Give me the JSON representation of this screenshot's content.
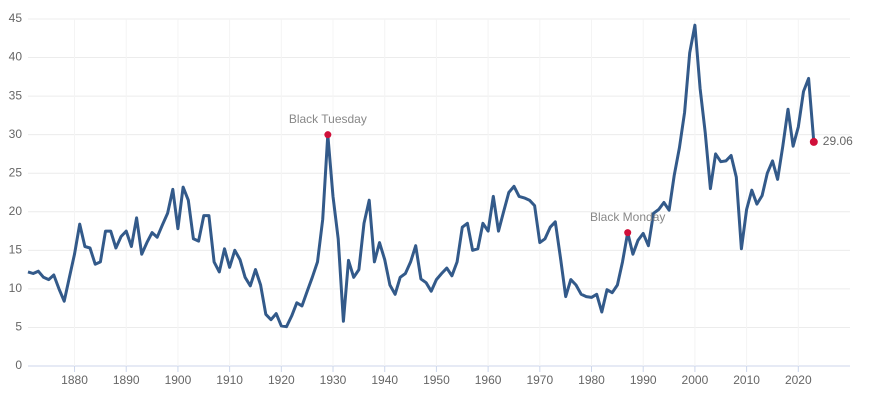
{
  "chart_data": {
    "type": "line",
    "x": [
      1871,
      1872,
      1873,
      1874,
      1875,
      1876,
      1877,
      1878,
      1879,
      1880,
      1881,
      1882,
      1883,
      1884,
      1885,
      1886,
      1887,
      1888,
      1889,
      1890,
      1891,
      1892,
      1893,
      1894,
      1895,
      1896,
      1897,
      1898,
      1899,
      1900,
      1901,
      1902,
      1903,
      1904,
      1905,
      1906,
      1907,
      1908,
      1909,
      1910,
      1911,
      1912,
      1913,
      1914,
      1915,
      1916,
      1917,
      1918,
      1919,
      1920,
      1921,
      1922,
      1923,
      1924,
      1925,
      1926,
      1927,
      1928,
      1929,
      1930,
      1931,
      1932,
      1933,
      1934,
      1935,
      1936,
      1937,
      1938,
      1939,
      1940,
      1941,
      1942,
      1943,
      1944,
      1945,
      1946,
      1947,
      1948,
      1949,
      1950,
      1951,
      1952,
      1953,
      1954,
      1955,
      1956,
      1957,
      1958,
      1959,
      1960,
      1961,
      1962,
      1963,
      1964,
      1965,
      1966,
      1967,
      1968,
      1969,
      1970,
      1971,
      1972,
      1973,
      1974,
      1975,
      1976,
      1977,
      1978,
      1979,
      1980,
      1981,
      1982,
      1983,
      1984,
      1985,
      1986,
      1987,
      1988,
      1989,
      1990,
      1991,
      1992,
      1993,
      1994,
      1995,
      1996,
      1997,
      1998,
      1999,
      2000,
      2001,
      2002,
      2003,
      2004,
      2005,
      2006,
      2007,
      2008,
      2009,
      2010,
      2011,
      2012,
      2013,
      2014,
      2015,
      2016,
      2017,
      2018,
      2019,
      2020,
      2021,
      2022,
      2023
    ],
    "series": [
      {
        "color": "#335a8a",
        "values": [
          12.2,
          12,
          12.3,
          11.5,
          11.2,
          11.8,
          10,
          8.4,
          11.5,
          14.5,
          18.4,
          15.5,
          15.3,
          13.2,
          13.5,
          17.5,
          17.5,
          15.3,
          16.8,
          17.5,
          15.5,
          19.2,
          14.5,
          16,
          17.3,
          16.7,
          18.3,
          19.8,
          22.9,
          17.8,
          23.2,
          21.5,
          16.5,
          16.2,
          19.5,
          19.5,
          13.5,
          12.2,
          15.2,
          12.8,
          15,
          13.8,
          11.5,
          10.4,
          12.5,
          10.5,
          6.7,
          6,
          6.8,
          5.2,
          5.1,
          6.5,
          8.2,
          7.8,
          9.7,
          11.5,
          13.5,
          19,
          30,
          22,
          16.5,
          5.8,
          13.7,
          11.5,
          12.5,
          18.5,
          21.5,
          13.5,
          16,
          13.8,
          10.5,
          9.3,
          11.5,
          12,
          13.5,
          15.6,
          11.3,
          10.8,
          9.7,
          11.2,
          12,
          12.7,
          11.7,
          13.5,
          18,
          18.5,
          15,
          15.2,
          18.5,
          17.5,
          22,
          17.5,
          20,
          22.5,
          23.3,
          22,
          21.8,
          21.5,
          20.8,
          16,
          16.5,
          18,
          18.7,
          14,
          9,
          11.2,
          10.5,
          9.3,
          9,
          8.9,
          9.3,
          7,
          9.9,
          9.5,
          10.5,
          13.5,
          17.3,
          14.5,
          16.3,
          17.2,
          15.6,
          19.8,
          20.3,
          21.2,
          20.2,
          24.7,
          28.3,
          32.9,
          40.6,
          44.2,
          36,
          30.3,
          23,
          27.5,
          26.5,
          26.6,
          27.3,
          24.5,
          15.2,
          20.3,
          22.8,
          21,
          22.1,
          25,
          26.6,
          24.2,
          28.5,
          33.3,
          28.5,
          31,
          35.6,
          37.3,
          29.06
        ]
      }
    ],
    "annotations": [
      {
        "label": "Black Tuesday",
        "x": 1929,
        "y": 30
      },
      {
        "label": "Black Monday",
        "x": 1987,
        "y": 17.3
      }
    ],
    "xlim": [
      1871,
      2030
    ],
    "xticks": [
      1880,
      1890,
      1900,
      1910,
      1920,
      1930,
      1940,
      1950,
      1960,
      1970,
      1980,
      1990,
      2000,
      2010,
      2020
    ],
    "ylim": [
      0,
      45
    ],
    "yticks": [
      0,
      5,
      10,
      15,
      20,
      25,
      30,
      35,
      40,
      45
    ],
    "grid": true,
    "marker_color": "#d0103a"
  }
}
